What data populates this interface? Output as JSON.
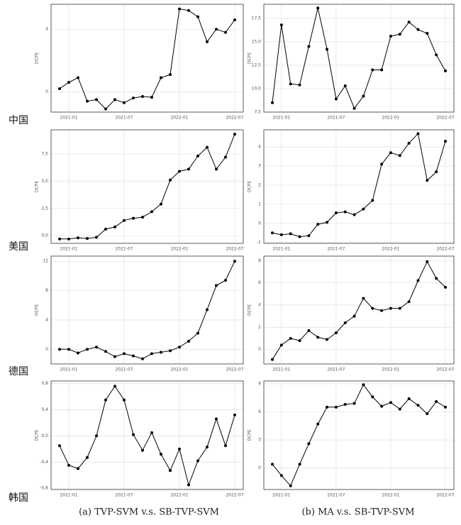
{
  "chart_data": [
    {
      "type": "line",
      "y_label": "DCPE",
      "color": "#000000",
      "grid": true,
      "x": [
        "2020-12",
        "2021-01",
        "2021-02",
        "2021-03",
        "2021-04",
        "2021-05",
        "2021-06",
        "2021-07",
        "2021-08",
        "2021-09",
        "2021-10",
        "2021-11",
        "2021-12",
        "2022-01",
        "2022-02",
        "2022-03",
        "2022-04",
        "2022-05",
        "2022-06",
        "2022-07"
      ],
      "xticks": [
        "2021-01",
        "2021-07",
        "2022-01",
        "2022-07"
      ],
      "values": [
        0.2,
        0.6,
        0.9,
        -0.6,
        -0.5,
        -1.1,
        -0.5,
        -0.7,
        -0.4,
        -0.3,
        -0.35,
        0.9,
        1.1,
        5.3,
        5.2,
        4.8,
        3.2,
        4.0,
        3.8,
        4.6
      ],
      "ylim": [
        -1.3,
        5.6
      ],
      "yticks": [
        0,
        4
      ]
    },
    {
      "type": "line",
      "y_label": "DCPE",
      "color": "#000000",
      "grid": true,
      "x": [
        "2020-12",
        "2021-01",
        "2021-02",
        "2021-03",
        "2021-04",
        "2021-05",
        "2021-06",
        "2021-07",
        "2021-08",
        "2021-09",
        "2021-10",
        "2021-11",
        "2021-12",
        "2022-01",
        "2022-02",
        "2022-03",
        "2022-04",
        "2022-05",
        "2022-06",
        "2022-07"
      ],
      "xticks": [
        "2021-01",
        "2021-07",
        "2022-01",
        "2022-07"
      ],
      "values": [
        8.5,
        16.8,
        10.5,
        10.4,
        14.5,
        18.6,
        14.2,
        8.9,
        10.3,
        7.9,
        9.2,
        12.0,
        12.0,
        15.6,
        15.8,
        17.1,
        16.3,
        15.9,
        13.6,
        11.9
      ],
      "ylim": [
        7.5,
        19.0
      ],
      "yticks": [
        {
          "value": 7.5,
          "label": "7,5"
        },
        {
          "value": 10,
          "label": "10,0"
        },
        {
          "value": 12.5,
          "label": "12,5"
        },
        {
          "value": 15,
          "label": "15,0"
        },
        {
          "value": 17.5,
          "label": "17,5"
        }
      ]
    },
    {
      "type": "line",
      "y_label": "DCPE",
      "color": "#000000",
      "grid": true,
      "x": [
        "2020-12",
        "2021-01",
        "2021-02",
        "2021-03",
        "2021-04",
        "2021-05",
        "2021-06",
        "2021-07",
        "2021-08",
        "2021-09",
        "2021-10",
        "2021-11",
        "2021-12",
        "2022-01",
        "2022-02",
        "2022-03",
        "2022-04",
        "2022-05",
        "2022-06",
        "2022-07"
      ],
      "xticks": [
        "2021-01",
        "2021-07",
        "2022-01",
        "2022-07"
      ],
      "values": [
        -0.3,
        -0.3,
        -0.2,
        -0.25,
        -0.15,
        0.6,
        0.8,
        1.4,
        1.6,
        1.7,
        2.2,
        2.9,
        5.1,
        5.9,
        6.1,
        7.3,
        8.1,
        6.1,
        7.2,
        9.3
      ],
      "ylim": [
        -0.7,
        9.7
      ],
      "yticks": [
        {
          "value": 0,
          "label": "0,0"
        },
        {
          "value": 2.5,
          "label": "2,5"
        },
        {
          "value": 5,
          "label": "5,0"
        },
        {
          "value": 7.5,
          "label": "7,5"
        }
      ]
    },
    {
      "type": "line",
      "y_label": "DCPE",
      "color": "#000000",
      "grid": true,
      "x": [
        "2020-12",
        "2021-01",
        "2021-02",
        "2021-03",
        "2021-04",
        "2021-05",
        "2021-06",
        "2021-07",
        "2021-08",
        "2021-09",
        "2021-10",
        "2021-11",
        "2021-12",
        "2022-01",
        "2022-02",
        "2022-03",
        "2022-04",
        "2022-05",
        "2022-06",
        "2022-07"
      ],
      "xticks": [
        "2021-01",
        "2021-07",
        "2022-01",
        "2022-07"
      ],
      "values": [
        -0.5,
        -0.6,
        -0.55,
        -0.7,
        -0.65,
        -0.05,
        0.05,
        0.55,
        0.6,
        0.45,
        0.75,
        1.2,
        3.1,
        3.7,
        3.55,
        4.2,
        4.7,
        2.25,
        2.7,
        4.3
      ],
      "ylim": [
        -1.05,
        4.9
      ],
      "yticks": [
        -1,
        0,
        1,
        2,
        3,
        4
      ]
    },
    {
      "type": "line",
      "y_label": "DCPE",
      "color": "#000000",
      "grid": true,
      "x": [
        "2020-12",
        "2021-01",
        "2021-02",
        "2021-03",
        "2021-04",
        "2021-05",
        "2021-06",
        "2021-07",
        "2021-08",
        "2021-09",
        "2021-10",
        "2021-11",
        "2021-12",
        "2022-01",
        "2022-02",
        "2022-03",
        "2022-04",
        "2022-05",
        "2022-06",
        "2022-07"
      ],
      "xticks": [
        "2021-01",
        "2021-07",
        "2022-01",
        "2022-07"
      ],
      "values": [
        0,
        0,
        -0.5,
        0,
        0.3,
        -0.3,
        -1.0,
        -0.6,
        -0.9,
        -1.3,
        -0.6,
        -0.4,
        -0.2,
        0.3,
        1.1,
        2.2,
        5.4,
        8.7,
        9.4,
        12.0
      ],
      "ylim": [
        -2,
        12.7
      ],
      "yticks": [
        0,
        4,
        8,
        12
      ]
    },
    {
      "type": "line",
      "y_label": "DCPE",
      "color": "#000000",
      "grid": true,
      "x": [
        "2020-12",
        "2021-01",
        "2021-02",
        "2021-03",
        "2021-04",
        "2021-05",
        "2021-06",
        "2021-07",
        "2021-08",
        "2021-09",
        "2021-10",
        "2021-11",
        "2021-12",
        "2022-01",
        "2022-02",
        "2022-03",
        "2022-04",
        "2022-05",
        "2022-06",
        "2022-07"
      ],
      "xticks": [
        "2021-01",
        "2021-07",
        "2022-01",
        "2022-07"
      ],
      "values": [
        -0.9,
        0.4,
        1.0,
        0.8,
        1.7,
        1.1,
        0.9,
        1.5,
        2.4,
        3.0,
        4.6,
        3.7,
        3.5,
        3.7,
        3.7,
        4.3,
        6.2,
        7.9,
        6.4,
        5.6
      ],
      "ylim": [
        -1.3,
        8.4
      ],
      "yticks": [
        0,
        2,
        4,
        6,
        8
      ]
    },
    {
      "type": "line",
      "y_label": "DCPE",
      "color": "#000000",
      "grid": true,
      "x": [
        "2020-12",
        "2021-01",
        "2021-02",
        "2021-03",
        "2021-04",
        "2021-05",
        "2021-06",
        "2021-07",
        "2021-08",
        "2021-09",
        "2021-10",
        "2021-11",
        "2021-12",
        "2022-01",
        "2022-02",
        "2022-03",
        "2022-04",
        "2022-05",
        "2022-06",
        "2022-07"
      ],
      "xticks": [
        "2021-01",
        "2021-07",
        "2022-01",
        "2022-07"
      ],
      "values": [
        -0.15,
        -0.45,
        -0.5,
        -0.33,
        0.0,
        0.55,
        0.76,
        0.55,
        0.02,
        -0.22,
        0.05,
        -0.28,
        -0.53,
        -0.2,
        -0.75,
        -0.38,
        -0.17,
        0.26,
        -0.15,
        0.32
      ],
      "ylim": [
        -0.82,
        0.84
      ],
      "yticks": [
        {
          "value": -0.8,
          "label": "-0,8"
        },
        {
          "value": -0.4,
          "label": "-0,4"
        },
        {
          "value": 0,
          "label": "0,0"
        },
        {
          "value": 0.4,
          "label": "0,4"
        },
        {
          "value": 0.8,
          "label": "0,8"
        }
      ]
    },
    {
      "type": "line",
      "y_label": "DCPE",
      "color": "#000000",
      "grid": true,
      "x": [
        "2020-12",
        "2021-01",
        "2021-02",
        "2021-03",
        "2021-04",
        "2021-05",
        "2021-06",
        "2021-07",
        "2021-08",
        "2021-09",
        "2021-10",
        "2021-11",
        "2021-12",
        "2022-01",
        "2022-02",
        "2022-03",
        "2022-04",
        "2022-05",
        "2022-06",
        "2022-07"
      ],
      "xticks": [
        "2021-01",
        "2021-07",
        "2022-01",
        "2022-07"
      ],
      "values": [
        0.4,
        -0.8,
        -1.9,
        0.4,
        2.6,
        4.7,
        6.5,
        6.5,
        6.8,
        6.9,
        8.9,
        7.6,
        6.6,
        7.0,
        6.3,
        7.4,
        6.7,
        5.8,
        7.1,
        6.5
      ],
      "ylim": [
        -2.3,
        9.3
      ],
      "yticks": [
        0,
        3,
        6,
        9
      ]
    }
  ],
  "row_labels": [
    "中国",
    "美国",
    "德国",
    "韩国"
  ],
  "captions": [
    "(a) TVP-SVM v.s. SB-TVP-SVM",
    "(b) MA v.s. SB-TVP-SVM"
  ]
}
